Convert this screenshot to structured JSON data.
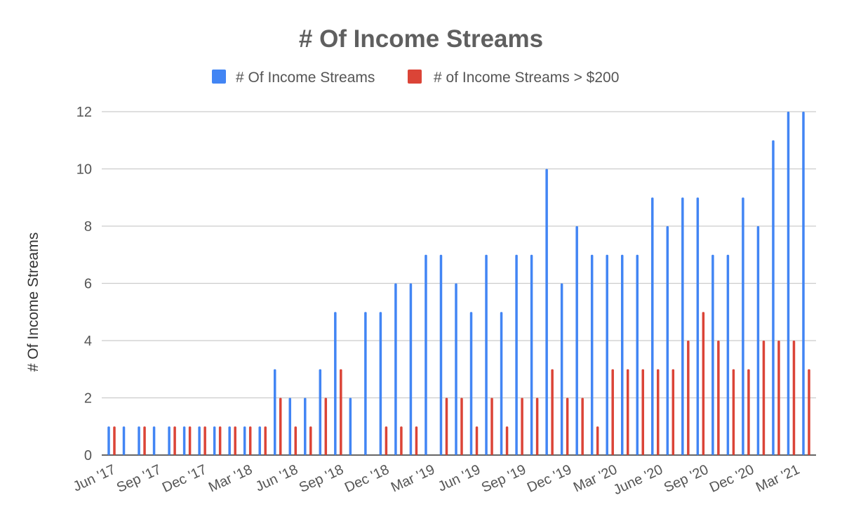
{
  "chart_data": {
    "type": "bar",
    "title": "# Of Income Streams",
    "xlabel": "",
    "ylabel": "# Of Income Streams",
    "ylim": [
      0,
      12
    ],
    "yticks": [
      0,
      2,
      4,
      6,
      8,
      10,
      12
    ],
    "grid": true,
    "legend_position": "top",
    "x_tick_labels": [
      "Jun '17",
      "Sep '17",
      "Dec '17",
      "Mar '18",
      "Jun '18",
      "Sep '18",
      "Dec '18",
      "Mar '19",
      "Jun '19",
      "Sep '19",
      "Dec '19",
      "Mar '20",
      "June '20",
      "Sep '20",
      "Dec '20",
      "Mar '21"
    ],
    "series": [
      {
        "name": "# Of Income Streams",
        "color": "#4285f4",
        "values": [
          1,
          1,
          1,
          1,
          1,
          1,
          1,
          1,
          1,
          1,
          1,
          3,
          2,
          2,
          3,
          5,
          2,
          5,
          5,
          6,
          6,
          7,
          7,
          6,
          5,
          7,
          5,
          7,
          7,
          10,
          6,
          8,
          7,
          7,
          7,
          7,
          9,
          8,
          9,
          9,
          7,
          7,
          9,
          8,
          11,
          12,
          12
        ]
      },
      {
        "name": "# of Income Streams > $200",
        "color": "#db4437",
        "values": [
          1,
          0,
          1,
          0,
          1,
          1,
          1,
          1,
          1,
          1,
          1,
          2,
          1,
          1,
          2,
          3,
          0,
          0,
          1,
          1,
          1,
          0,
          2,
          2,
          1,
          2,
          1,
          2,
          2,
          3,
          2,
          2,
          1,
          3,
          3,
          3,
          3,
          3,
          4,
          5,
          4,
          3,
          3,
          4,
          4,
          4,
          3
        ]
      }
    ]
  }
}
